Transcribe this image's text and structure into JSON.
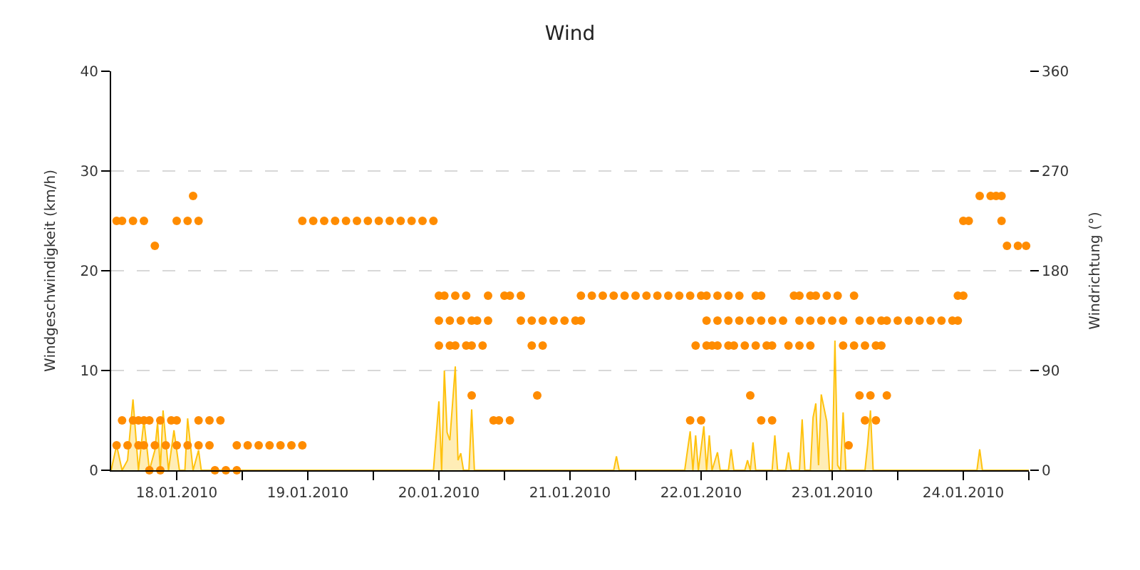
{
  "chart_data": {
    "type": "area",
    "title": "Wind",
    "ylabel": "Windgeschwindigkeit (km/h)",
    "y2label": "Windrichtung (°)",
    "xlim": [
      "2010-01-17T12:00",
      "2010-01-24T12:00"
    ],
    "xticks": [
      {
        "value": "2010-01-18",
        "label": "18.01.2010"
      },
      {
        "value": "2010-01-19",
        "label": "19.01.2010"
      },
      {
        "value": "2010-01-20",
        "label": "20.01.2010"
      },
      {
        "value": "2010-01-21",
        "label": "21.01.2010"
      },
      {
        "value": "2010-01-22",
        "label": "22.01.2010"
      },
      {
        "value": "2010-01-23",
        "label": "23.01.2010"
      },
      {
        "value": "2010-01-24",
        "label": "24.01.2010"
      },
      {
        "value": "2010-01-18T12:00",
        "label": null
      },
      {
        "value": "2010-01-19T12:00",
        "label": null
      },
      {
        "value": "2010-01-20T12:00",
        "label": null
      },
      {
        "value": "2010-01-21T12:00",
        "label": null
      },
      {
        "value": "2010-01-22T12:00",
        "label": null
      },
      {
        "value": "2010-01-23T12:00",
        "label": null
      },
      {
        "value": "2010-01-24T12:00",
        "label": null
      }
    ],
    "ylim": [
      0,
      40
    ],
    "yticks": [
      0,
      10,
      20,
      30,
      40
    ],
    "y2lim": [
      0,
      360
    ],
    "y2ticks": [
      0,
      90,
      180,
      270,
      360
    ],
    "grid": "y",
    "series": [
      {
        "color": "#ffc20e",
        "marker": "none",
        "x": [
          "2010-01-17T12:00",
          "2010-01-17T13:00",
          "2010-01-17T14:00",
          "2010-01-17T15:00",
          "2010-01-17T16:00",
          "2010-01-17T17:00",
          "2010-01-17T18:00",
          "2010-01-17T19:00",
          "2010-01-17T20:00",
          "2010-01-17T20:30",
          "2010-01-17T21:00",
          "2010-01-17T21:30",
          "2010-01-17T22:30",
          "2010-01-17T23:30",
          "2010-01-18T00:30",
          "2010-01-18T01:30",
          "2010-01-18T02:00",
          "2010-01-18T03:00",
          "2010-01-18T04:00",
          "2010-01-18T04:30",
          "2010-01-19T23:00",
          "2010-01-20T00:00",
          "2010-01-20T00:30",
          "2010-01-20T01:00",
          "2010-01-20T01:30",
          "2010-01-20T02:00",
          "2010-01-20T03:00",
          "2010-01-20T03:30",
          "2010-01-20T04:00",
          "2010-01-20T04:30",
          "2010-01-20T05:30",
          "2010-01-20T06:00",
          "2010-01-20T06:30",
          "2010-01-21T08:00",
          "2010-01-21T08:30",
          "2010-01-21T09:00",
          "2010-01-21T21:00",
          "2010-01-21T22:00",
          "2010-01-21T22:30",
          "2010-01-21T23:00",
          "2010-01-21T23:30",
          "2010-01-22T00:30",
          "2010-01-22T01:00",
          "2010-01-22T01:30",
          "2010-01-22T02:00",
          "2010-01-22T03:00",
          "2010-01-22T03:30",
          "2010-01-22T05:00",
          "2010-01-22T05:30",
          "2010-01-22T06:00",
          "2010-01-22T08:00",
          "2010-01-22T08:30",
          "2010-01-22T09:00",
          "2010-01-22T09:30",
          "2010-01-22T10:00",
          "2010-01-22T13:00",
          "2010-01-22T13:30",
          "2010-01-22T14:00",
          "2010-01-22T15:30",
          "2010-01-22T16:00",
          "2010-01-22T16:30",
          "2010-01-22T18:00",
          "2010-01-22T18:30",
          "2010-01-22T19:00",
          "2010-01-22T20:00",
          "2010-01-22T20:30",
          "2010-01-22T21:00",
          "2010-01-22T21:30",
          "2010-01-22T22:00",
          "2010-01-22T23:00",
          "2010-01-22T23:30",
          "2010-01-23T00:00",
          "2010-01-23T00:30",
          "2010-01-23T01:00",
          "2010-01-23T01:30",
          "2010-01-23T02:00",
          "2010-01-23T02:30",
          "2010-01-23T06:00",
          "2010-01-23T06:30",
          "2010-01-23T07:00",
          "2010-01-23T07:30",
          "2010-01-24T02:30",
          "2010-01-24T03:00",
          "2010-01-24T03:30",
          "2010-01-24T12:00"
        ],
        "values": [
          0,
          2.5,
          0,
          1,
          7.1,
          0,
          5,
          0,
          2,
          4.8,
          0,
          6,
          0,
          4,
          0,
          0,
          5.2,
          0,
          2,
          0,
          0,
          6.9,
          0,
          10,
          3.8,
          3,
          10.4,
          1,
          1.7,
          0,
          0,
          6.1,
          0,
          0,
          1.4,
          0,
          0,
          3.9,
          0,
          3.5,
          0,
          4.4,
          0,
          3.5,
          0,
          1.8,
          0,
          0,
          2.1,
          0,
          0,
          1,
          0,
          2.8,
          0,
          0,
          3.5,
          0,
          0,
          1.8,
          0,
          0,
          5.1,
          0,
          0,
          5.3,
          6.7,
          0.5,
          7.6,
          4.9,
          0,
          0,
          13,
          0.5,
          0,
          5.8,
          0,
          0,
          2.6,
          6,
          0,
          0,
          2.1,
          0,
          0
        ]
      },
      {
        "type": "scatter",
        "axis": "y2",
        "color": "#ff8c00",
        "marker": "circle",
        "x": [
          "2010-01-17T13:00",
          "2010-01-17T14:00",
          "2010-01-17T16:00",
          "2010-01-17T18:00",
          "2010-01-18T00:00",
          "2010-01-18T02:00",
          "2010-01-18T04:00",
          "2010-01-18T23:00",
          "2010-01-19T01:00",
          "2010-01-19T03:00",
          "2010-01-19T05:00",
          "2010-01-19T07:00",
          "2010-01-19T09:00",
          "2010-01-19T11:00",
          "2010-01-19T13:00",
          "2010-01-19T15:00",
          "2010-01-19T17:00",
          "2010-01-19T19:00",
          "2010-01-19T21:00",
          "2010-01-19T23:00",
          "2010-01-24T00:00",
          "2010-01-24T01:00",
          "2010-01-24T07:00",
          "2010-01-18T03:00",
          "2010-01-24T03:00",
          "2010-01-24T05:00",
          "2010-01-24T06:00",
          "2010-01-24T07:00",
          "2010-01-17T20:00",
          "2010-01-24T08:00",
          "2010-01-24T10:00",
          "2010-01-24T11:30",
          "2010-01-20T00:00",
          "2010-01-20T01:00",
          "2010-01-20T03:00",
          "2010-01-20T05:00",
          "2010-01-20T09:00",
          "2010-01-20T12:00",
          "2010-01-20T13:00",
          "2010-01-20T15:00",
          "2010-01-21T02:00",
          "2010-01-21T04:00",
          "2010-01-21T06:00",
          "2010-01-21T08:00",
          "2010-01-21T10:00",
          "2010-01-21T12:00",
          "2010-01-21T14:00",
          "2010-01-21T16:00",
          "2010-01-21T18:00",
          "2010-01-21T20:00",
          "2010-01-21T22:00",
          "2010-01-22T00:00",
          "2010-01-22T01:00",
          "2010-01-22T03:00",
          "2010-01-22T05:00",
          "2010-01-22T07:00",
          "2010-01-22T10:00",
          "2010-01-22T11:00",
          "2010-01-22T17:00",
          "2010-01-22T18:00",
          "2010-01-22T20:00",
          "2010-01-22T21:00",
          "2010-01-22T23:00",
          "2010-01-23T01:00",
          "2010-01-23T04:00",
          "2010-01-23T23:00",
          "2010-01-24T00:00",
          "2010-01-20T00:00",
          "2010-01-20T02:00",
          "2010-01-20T04:00",
          "2010-01-20T06:00",
          "2010-01-20T07:00",
          "2010-01-20T09:00",
          "2010-01-20T15:00",
          "2010-01-20T17:00",
          "2010-01-20T19:00",
          "2010-01-20T21:00",
          "2010-01-20T23:00",
          "2010-01-21T01:00",
          "2010-01-21T02:00",
          "2010-01-22T01:00",
          "2010-01-22T03:00",
          "2010-01-22T05:00",
          "2010-01-22T07:00",
          "2010-01-22T09:00",
          "2010-01-22T11:00",
          "2010-01-22T13:00",
          "2010-01-22T15:00",
          "2010-01-22T18:00",
          "2010-01-22T20:00",
          "2010-01-22T22:00",
          "2010-01-23T00:00",
          "2010-01-23T02:00",
          "2010-01-23T05:00",
          "2010-01-23T07:00",
          "2010-01-23T09:00",
          "2010-01-23T10:00",
          "2010-01-23T12:00",
          "2010-01-23T14:00",
          "2010-01-23T16:00",
          "2010-01-23T18:00",
          "2010-01-23T20:00",
          "2010-01-23T22:00",
          "2010-01-23T23:00",
          "2010-01-20T00:00",
          "2010-01-20T02:00",
          "2010-01-20T03:00",
          "2010-01-20T05:00",
          "2010-01-20T06:00",
          "2010-01-20T08:00",
          "2010-01-20T17:00",
          "2010-01-20T19:00",
          "2010-01-21T23:00",
          "2010-01-22T01:00",
          "2010-01-22T02:00",
          "2010-01-22T03:00",
          "2010-01-22T05:00",
          "2010-01-22T06:00",
          "2010-01-22T08:00",
          "2010-01-22T10:00",
          "2010-01-22T12:00",
          "2010-01-22T13:00",
          "2010-01-22T16:00",
          "2010-01-22T18:00",
          "2010-01-22T20:00",
          "2010-01-23T02:00",
          "2010-01-23T04:00",
          "2010-01-23T06:00",
          "2010-01-23T08:00",
          "2010-01-23T09:00",
          "2010-01-20T06:00",
          "2010-01-20T18:00",
          "2010-01-22T09:00",
          "2010-01-23T05:00",
          "2010-01-23T07:00",
          "2010-01-23T10:00",
          "2010-01-17T14:00",
          "2010-01-17T16:00",
          "2010-01-17T17:00",
          "2010-01-17T18:00",
          "2010-01-17T19:00",
          "2010-01-17T21:00",
          "2010-01-17T23:00",
          "2010-01-18T00:00",
          "2010-01-18T04:00",
          "2010-01-18T06:00",
          "2010-01-18T08:00",
          "2010-01-20T10:00",
          "2010-01-20T11:00",
          "2010-01-20T13:00",
          "2010-01-21T22:00",
          "2010-01-22T00:00",
          "2010-01-22T11:00",
          "2010-01-22T13:00",
          "2010-01-23T06:00",
          "2010-01-23T08:00",
          "2010-01-17T13:00",
          "2010-01-17T15:00",
          "2010-01-17T17:00",
          "2010-01-17T18:00",
          "2010-01-17T20:00",
          "2010-01-17T22:00",
          "2010-01-18T00:00",
          "2010-01-18T02:00",
          "2010-01-18T04:00",
          "2010-01-18T06:00",
          "2010-01-18T11:00",
          "2010-01-18T13:00",
          "2010-01-18T15:00",
          "2010-01-18T17:00",
          "2010-01-18T19:00",
          "2010-01-18T21:00",
          "2010-01-18T23:00",
          "2010-01-23T03:00",
          "2010-01-17T19:00",
          "2010-01-17T21:00",
          "2010-01-18T07:00",
          "2010-01-18T09:00",
          "2010-01-18T11:00"
        ],
        "values": [
          225,
          225,
          225,
          225,
          225,
          225,
          225,
          225,
          225,
          225,
          225,
          225,
          225,
          225,
          225,
          225,
          225,
          225,
          225,
          225,
          225,
          225,
          225,
          247.5,
          247.5,
          247.5,
          247.5,
          247.5,
          202.5,
          202.5,
          202.5,
          202.5,
          157.5,
          157.5,
          157.5,
          157.5,
          157.5,
          157.5,
          157.5,
          157.5,
          157.5,
          157.5,
          157.5,
          157.5,
          157.5,
          157.5,
          157.5,
          157.5,
          157.5,
          157.5,
          157.5,
          157.5,
          157.5,
          157.5,
          157.5,
          157.5,
          157.5,
          157.5,
          157.5,
          157.5,
          157.5,
          157.5,
          157.5,
          157.5,
          157.5,
          157.5,
          157.5,
          135,
          135,
          135,
          135,
          135,
          135,
          135,
          135,
          135,
          135,
          135,
          135,
          135,
          135,
          135,
          135,
          135,
          135,
          135,
          135,
          135,
          135,
          135,
          135,
          135,
          135,
          135,
          135,
          135,
          135,
          135,
          135,
          135,
          135,
          135,
          135,
          135,
          112.5,
          112.5,
          112.5,
          112.5,
          112.5,
          112.5,
          112.5,
          112.5,
          112.5,
          112.5,
          112.5,
          112.5,
          112.5,
          112.5,
          112.5,
          112.5,
          112.5,
          112.5,
          112.5,
          112.5,
          112.5,
          112.5,
          112.5,
          112.5,
          112.5,
          112.5,
          67.5,
          67.5,
          67.5,
          67.5,
          67.5,
          67.5,
          45,
          45,
          45,
          45,
          45,
          45,
          45,
          45,
          45,
          45,
          45,
          45,
          45,
          45,
          45,
          45,
          45,
          45,
          45,
          45,
          22.5,
          22.5,
          22.5,
          22.5,
          22.5,
          22.5,
          22.5,
          22.5,
          22.5,
          22.5,
          22.5,
          22.5,
          22.5,
          22.5,
          22.5,
          22.5,
          22.5,
          22.5,
          0,
          0,
          0,
          0,
          0
        ]
      }
    ]
  }
}
